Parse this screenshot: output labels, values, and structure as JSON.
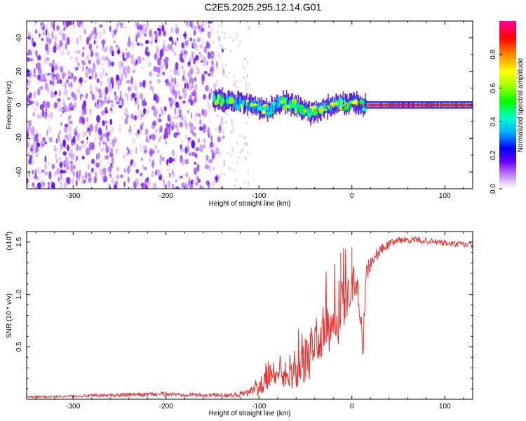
{
  "figure": {
    "title": "C2E5.2025.295.12.14.G01"
  },
  "colors": {
    "snr_line": "#e8312f",
    "noise_speckle": "#7a1fe8",
    "signal_core": "#e01010",
    "axis": "#000000"
  },
  "chart_data": [
    {
      "type": "heatmap",
      "title": "",
      "xlabel": "Height of straight line (km)",
      "ylabel": "Frequency (Hz)",
      "xlim": [
        -350,
        130
      ],
      "ylim": [
        -50,
        50
      ],
      "xticks": [
        -300,
        -200,
        -100,
        0,
        100
      ],
      "yticks": [
        -40,
        -20,
        0,
        20,
        40
      ],
      "colorbar": {
        "label": "Normalized spectral amplitude",
        "range": [
          0,
          1
        ],
        "ticks": [
          0.0,
          0.2,
          0.4,
          0.6,
          0.8
        ],
        "colormap": [
          "#ffffff",
          "#cc99ff",
          "#6a00ff",
          "#0000ff",
          "#00ffff",
          "#00ff00",
          "#ffff00",
          "#ff8800",
          "#ff0000",
          "#ff00cc"
        ]
      },
      "noise_region": {
        "x_range": [
          -350,
          -150
        ],
        "freq_range": [
          -50,
          50
        ],
        "amplitude": "low (~0.1-0.3)"
      },
      "signal_track": {
        "x": [
          -150,
          -130,
          -110,
          -90,
          -75,
          -60,
          -45,
          -35,
          -25,
          -15,
          -5,
          0,
          10,
          20,
          60,
          130
        ],
        "freq_hz": [
          4,
          2,
          0,
          -3,
          2,
          -1,
          -5,
          -3,
          -1,
          1,
          0,
          2,
          0,
          0,
          0,
          0
        ],
        "amplitude": [
          0.3,
          0.4,
          0.45,
          0.5,
          0.5,
          0.55,
          0.6,
          0.7,
          0.75,
          0.8,
          0.85,
          0.9,
          0.95,
          1.0,
          1.0,
          1.0
        ]
      }
    },
    {
      "type": "line",
      "title": "",
      "xlabel": "Height of straight line (km)",
      "ylabel": "SNR (10 * v/v)",
      "y_scale_label": "(x10",
      "y_scale_exp": "4",
      "xlim": [
        -350,
        130
      ],
      "ylim": [
        0,
        1.6
      ],
      "xticks": [
        -300,
        -200,
        -100,
        0,
        100
      ],
      "yticks": [
        0.5,
        1.0,
        1.5
      ],
      "ytick_labels": [
        "0.5",
        "1.0",
        "1.5"
      ],
      "series": [
        {
          "name": "",
          "x": [
            -350,
            -300,
            -250,
            -200,
            -160,
            -130,
            -110,
            -100,
            -90,
            -80,
            -70,
            -60,
            -50,
            -45,
            -40,
            -30,
            -20,
            -12,
            -5,
            0,
            5,
            10,
            12,
            15,
            20,
            30,
            40,
            50,
            70,
            90,
            110,
            130
          ],
          "mean": [
            0.02,
            0.03,
            0.04,
            0.05,
            0.04,
            0.04,
            0.06,
            0.15,
            0.25,
            0.2,
            0.18,
            0.25,
            0.35,
            0.4,
            0.55,
            0.65,
            0.75,
            0.85,
            1.0,
            1.1,
            1.15,
            0.7,
            0.4,
            1.2,
            1.3,
            1.42,
            1.48,
            1.52,
            1.52,
            1.5,
            1.48,
            1.47
          ],
          "spread": [
            0.01,
            0.01,
            0.02,
            0.02,
            0.02,
            0.02,
            0.04,
            0.12,
            0.15,
            0.12,
            0.12,
            0.15,
            0.2,
            0.22,
            0.25,
            0.25,
            0.3,
            0.3,
            0.25,
            0.2,
            0.15,
            0.1,
            0.08,
            0.1,
            0.08,
            0.05,
            0.04,
            0.03,
            0.03,
            0.03,
            0.03,
            0.03
          ],
          "peaks": [
            {
              "x": -12,
              "y": 1.4
            },
            {
              "x": 0,
              "y": 1.45
            }
          ]
        }
      ]
    }
  ]
}
